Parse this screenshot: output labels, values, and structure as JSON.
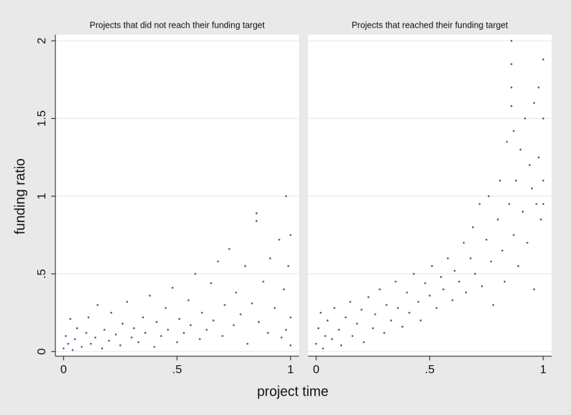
{
  "ylabel": "funding ratio",
  "xlabel": "project time",
  "chart_data": [
    {
      "type": "scatter",
      "title": "Projects that did not reach their funding target",
      "xlim": [
        -0.036,
        1.037
      ],
      "ylim": [
        -0.03,
        2.04
      ],
      "xticks": [
        0,
        {
          "value": 0.5,
          "label": ".5"
        },
        1
      ],
      "yticks": [
        0,
        {
          "value": 0.5,
          "label": ".5"
        },
        1,
        1.5,
        2
      ],
      "grid": true,
      "series": [
        {
          "color": "#2f4b6e",
          "x": [
            0.0,
            0.01,
            0.02,
            0.03,
            0.04,
            0.05,
            0.06,
            0.08,
            0.1,
            0.11,
            0.12,
            0.14,
            0.15,
            0.17,
            0.18,
            0.2,
            0.21,
            0.23,
            0.25,
            0.26,
            0.28,
            0.3,
            0.31,
            0.33,
            0.35,
            0.36,
            0.38,
            0.4,
            0.41,
            0.43,
            0.45,
            0.46,
            0.48,
            0.5,
            0.51,
            0.53,
            0.55,
            0.56,
            0.58,
            0.6,
            0.61,
            0.63,
            0.65,
            0.66,
            0.68,
            0.7,
            0.71,
            0.73,
            0.75,
            0.76,
            0.78,
            0.8,
            0.81,
            0.83,
            0.85,
            0.85,
            0.86,
            0.88,
            0.9,
            0.91,
            0.93,
            0.95,
            0.96,
            0.97,
            0.98,
            0.98,
            0.99,
            1.0,
            1.0,
            1.0
          ],
          "values": [
            0.02,
            0.1,
            0.05,
            0.21,
            0.01,
            0.08,
            0.15,
            0.03,
            0.12,
            0.22,
            0.05,
            0.09,
            0.3,
            0.02,
            0.14,
            0.07,
            0.25,
            0.11,
            0.04,
            0.18,
            0.32,
            0.09,
            0.15,
            0.06,
            0.22,
            0.12,
            0.36,
            0.03,
            0.19,
            0.1,
            0.28,
            0.14,
            0.41,
            0.06,
            0.21,
            0.12,
            0.33,
            0.17,
            0.5,
            0.08,
            0.25,
            0.14,
            0.44,
            0.2,
            0.58,
            0.1,
            0.3,
            0.66,
            0.17,
            0.38,
            0.24,
            0.55,
            0.05,
            0.31,
            0.89,
            0.84,
            0.19,
            0.45,
            0.12,
            0.6,
            0.28,
            0.72,
            0.09,
            0.4,
            1.0,
            0.14,
            0.55,
            0.75,
            0.22,
            0.04
          ]
        }
      ]
    },
    {
      "type": "scatter",
      "title": "Projects that reached their funding target",
      "xlim": [
        -0.036,
        1.037
      ],
      "ylim": [
        -0.03,
        2.04
      ],
      "xticks": [
        0,
        {
          "value": 0.5,
          "label": ".5"
        },
        1
      ],
      "yticks": [
        0,
        {
          "value": 0.5,
          "label": ".5"
        },
        1,
        1.5,
        2
      ],
      "grid": true,
      "series": [
        {
          "color": "#2f4b6e",
          "x": [
            0.0,
            0.01,
            0.02,
            0.03,
            0.04,
            0.05,
            0.07,
            0.08,
            0.1,
            0.11,
            0.13,
            0.15,
            0.16,
            0.18,
            0.2,
            0.21,
            0.23,
            0.25,
            0.26,
            0.28,
            0.3,
            0.31,
            0.33,
            0.35,
            0.36,
            0.38,
            0.4,
            0.41,
            0.43,
            0.45,
            0.46,
            0.48,
            0.5,
            0.51,
            0.53,
            0.55,
            0.56,
            0.58,
            0.6,
            0.61,
            0.63,
            0.65,
            0.66,
            0.68,
            0.69,
            0.7,
            0.72,
            0.73,
            0.75,
            0.76,
            0.77,
            0.78,
            0.8,
            0.81,
            0.82,
            0.83,
            0.84,
            0.85,
            0.86,
            0.86,
            0.86,
            0.86,
            0.87,
            0.87,
            0.88,
            0.89,
            0.9,
            0.91,
            0.92,
            0.93,
            0.94,
            0.95,
            0.96,
            0.96,
            0.97,
            0.98,
            0.98,
            0.99,
            1.0,
            1.0,
            1.0,
            1.0
          ],
          "values": [
            0.05,
            0.15,
            0.25,
            0.02,
            0.1,
            0.2,
            0.08,
            0.28,
            0.14,
            0.04,
            0.22,
            0.32,
            0.1,
            0.18,
            0.27,
            0.06,
            0.35,
            0.15,
            0.24,
            0.4,
            0.12,
            0.3,
            0.2,
            0.45,
            0.28,
            0.16,
            0.38,
            0.25,
            0.5,
            0.32,
            0.2,
            0.44,
            0.36,
            0.55,
            0.28,
            0.48,
            0.4,
            0.6,
            0.33,
            0.52,
            0.45,
            0.7,
            0.38,
            0.6,
            0.8,
            0.5,
            0.95,
            0.42,
            0.72,
            1.0,
            0.58,
            0.3,
            0.85,
            1.1,
            0.65,
            0.45,
            1.35,
            0.95,
            2.0,
            1.85,
            1.7,
            1.58,
            1.42,
            0.75,
            1.1,
            0.55,
            1.3,
            0.9,
            1.5,
            0.7,
            1.2,
            1.05,
            1.6,
            0.4,
            0.95,
            1.7,
            1.25,
            0.85,
            1.88,
            1.5,
            1.1,
            0.95
          ]
        }
      ]
    }
  ]
}
